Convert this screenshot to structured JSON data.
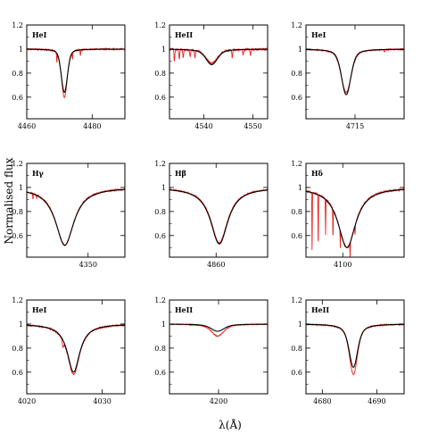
{
  "figure": {
    "xlabel": "λ(Å)",
    "ylabel": "Normalised flux",
    "colors": {
      "observed": "#e8231f",
      "model": "#000000"
    }
  },
  "chart_data": [
    {
      "type": "line",
      "label": "HeI",
      "xlim": [
        4460,
        4490
      ],
      "ylim": [
        0.42,
        1.2
      ],
      "xticks": [
        4460,
        4480
      ],
      "yticks": [
        0.6,
        0.8,
        1,
        1.2
      ],
      "ytick_labels": [
        "0.6",
        "0.8",
        "1",
        "1.2"
      ],
      "lines": [
        {
          "role": "observed",
          "color": "#e8231f",
          "continuum": 1,
          "profiles": [
            [
              4471.5,
              0.4,
              1.2,
              0.3
            ]
          ],
          "dips": [
            [
              4469.2,
              0.08
            ],
            [
              4474.0,
              0.06
            ],
            [
              4476.4,
              0.05
            ]
          ],
          "noise": 0.005
        },
        {
          "role": "model",
          "color": "#000000",
          "continuum": 1,
          "profiles": [
            [
              4471.5,
              0.36,
              1.3,
              0.3
            ]
          ]
        }
      ]
    },
    {
      "type": "line",
      "label": "HeII",
      "xlim": [
        4533,
        4553
      ],
      "ylim": [
        0.42,
        1.2
      ],
      "xticks": [
        4540,
        4550
      ],
      "yticks": [
        0.6,
        0.8,
        1,
        1.2
      ],
      "ytick_labels": [
        "0.6",
        "0.8",
        "1",
        "1.2"
      ],
      "lines": [
        {
          "role": "observed",
          "color": "#e8231f",
          "continuum": 1,
          "profiles": [
            [
              4541.6,
              0.12,
              1.6,
              0.5
            ]
          ],
          "dips": [
            [
              4534.0,
              0.1
            ],
            [
              4535.0,
              0.08
            ],
            [
              4535.8,
              0.07
            ],
            [
              4537.2,
              0.06
            ],
            [
              4538.2,
              0.06
            ],
            [
              4545.8,
              0.07
            ],
            [
              4548.0,
              0.05
            ],
            [
              4549.5,
              0.05
            ]
          ],
          "noise": 0.008
        },
        {
          "role": "model",
          "color": "#000000",
          "continuum": 1,
          "profiles": [
            [
              4541.6,
              0.13,
              1.6,
              0.5
            ]
          ]
        }
      ]
    },
    {
      "type": "line",
      "label": "HeI",
      "xlim": [
        4705,
        4725
      ],
      "ylim": [
        0.42,
        1.2
      ],
      "xticks": [
        4715
      ],
      "yticks": [
        0.6,
        0.8,
        1,
        1.2
      ],
      "ytick_labels": [
        "0.6",
        "0.8",
        "1",
        "1.2"
      ],
      "lines": [
        {
          "role": "observed",
          "color": "#e8231f",
          "continuum": 1,
          "profiles": [
            [
              4713.2,
              0.36,
              1.4,
              0.4
            ]
          ],
          "dips": [
            [
              4721.0,
              0.02
            ]
          ],
          "noise": 0.004
        },
        {
          "role": "model",
          "color": "#000000",
          "continuum": 1,
          "profiles": [
            [
              4713.2,
              0.38,
              1.3,
              0.4
            ]
          ]
        }
      ]
    },
    {
      "type": "line",
      "label": "Hγ",
      "xlim": [
        4325,
        4365
      ],
      "ylim": [
        0.42,
        1.2
      ],
      "xticks": [
        4350
      ],
      "yticks": [
        0.6,
        0.8,
        1,
        1.2
      ],
      "ytick_labels": [
        "0.6",
        "0.8",
        "1",
        "1.2"
      ],
      "lines": [
        {
          "role": "observed",
          "color": "#e8231f",
          "continuum": 1,
          "profiles": [
            [
              4340.5,
              0.48,
              4.5,
              1
            ]
          ],
          "dips": [
            [
              4327.5,
              0.05
            ],
            [
              4329.0,
              0.03
            ]
          ],
          "noise": 0.005
        },
        {
          "role": "model",
          "color": "#000000",
          "continuum": 1,
          "profiles": [
            [
              4340.5,
              0.48,
              4.6,
              1
            ]
          ]
        }
      ]
    },
    {
      "type": "line",
      "label": "Hβ",
      "xlim": [
        4841,
        4881
      ],
      "ylim": [
        0.42,
        1.2
      ],
      "xticks": [
        4860
      ],
      "yticks": [
        0.6,
        0.8,
        1,
        1.2
      ],
      "ytick_labels": [
        "0.6",
        "0.8",
        "1",
        "1.2"
      ],
      "lines": [
        {
          "role": "observed",
          "color": "#e8231f",
          "continuum": 1,
          "profiles": [
            [
              4861.3,
              0.46,
              4.2,
              1
            ]
          ],
          "noise": 0.004
        },
        {
          "role": "model",
          "color": "#000000",
          "continuum": 1,
          "profiles": [
            [
              4861.3,
              0.47,
              4.3,
              1
            ]
          ]
        }
      ]
    },
    {
      "type": "line",
      "label": "Hδ",
      "xlim": [
        4085,
        4125
      ],
      "ylim": [
        0.42,
        1.2
      ],
      "xticks": [
        4100
      ],
      "yticks": [
        0.6,
        0.8,
        1,
        1.2
      ],
      "ytick_labels": [
        "0.6",
        "0.8",
        "1",
        "1.2"
      ],
      "lines": [
        {
          "role": "observed",
          "color": "#e8231f",
          "continuum": 1,
          "profiles": [
            [
              4101.7,
              0.5,
              4.3,
              1
            ]
          ],
          "dips": [
            [
              4087.5,
              0.5
            ],
            [
              4090.0,
              0.45
            ],
            [
              4093.0,
              0.3
            ],
            [
              4096.0,
              0.25
            ],
            [
              4099.0,
              0.15
            ],
            [
              4103.0,
              0.12
            ],
            [
              4105.0,
              0.08
            ]
          ],
          "noise": 0.006
        },
        {
          "role": "model",
          "color": "#000000",
          "continuum": 1,
          "profiles": [
            [
              4101.7,
              0.5,
              4.4,
              1
            ]
          ]
        }
      ]
    },
    {
      "type": "line",
      "label": "HeI",
      "xlim": [
        4020,
        4033
      ],
      "ylim": [
        0.42,
        1.2
      ],
      "xticks": [
        4020,
        4030
      ],
      "yticks": [
        0.6,
        0.8,
        1,
        1.2
      ],
      "ytick_labels": [
        "0.6",
        "0.8",
        "1",
        "1.2"
      ],
      "lines": [
        {
          "role": "observed",
          "color": "#e8231f",
          "continuum": 1,
          "profiles": [
            [
              4026.2,
              0.42,
              1.0,
              1.8
            ]
          ],
          "dips": [
            [
              4024.8,
              0.05
            ]
          ],
          "noise": 0.005
        },
        {
          "role": "model",
          "color": "#000000",
          "continuum": 1,
          "profiles": [
            [
              4026.2,
              0.4,
              1.0,
              1.8
            ]
          ]
        }
      ]
    },
    {
      "type": "line",
      "label": "HeII",
      "xlim": [
        4190,
        4210
      ],
      "ylim": [
        0.42,
        1.2
      ],
      "xticks": [
        4200
      ],
      "yticks": [
        0.6,
        0.8,
        1,
        1.2
      ],
      "ytick_labels": [
        "0.6",
        "0.8",
        "1",
        "1.2"
      ],
      "lines": [
        {
          "role": "observed",
          "color": "#e8231f",
          "continuum": 1,
          "profiles": [
            [
              4199.8,
              0.1,
              1.7,
              0.6
            ]
          ],
          "noise": 0.003
        },
        {
          "role": "model",
          "color": "#000000",
          "continuum": 1,
          "profiles": [
            [
              4199.8,
              0.06,
              1.8,
              0.6
            ]
          ]
        }
      ]
    },
    {
      "type": "line",
      "label": "HeII",
      "xlim": [
        4677,
        4695
      ],
      "ylim": [
        0.42,
        1.2
      ],
      "xticks": [
        4680,
        4690
      ],
      "yticks": [
        0.6,
        0.8,
        1,
        1.2
      ],
      "ytick_labels": [
        "0.6",
        "0.8",
        "1",
        "1.2"
      ],
      "lines": [
        {
          "role": "observed",
          "color": "#e8231f",
          "continuum": 1,
          "profiles": [
            [
              4685.7,
              0.42,
              1.0,
              0.6
            ]
          ],
          "noise": 0.004
        },
        {
          "role": "model",
          "color": "#000000",
          "continuum": 1,
          "profiles": [
            [
              4685.7,
              0.36,
              1.05,
              0.6
            ]
          ]
        }
      ]
    }
  ]
}
